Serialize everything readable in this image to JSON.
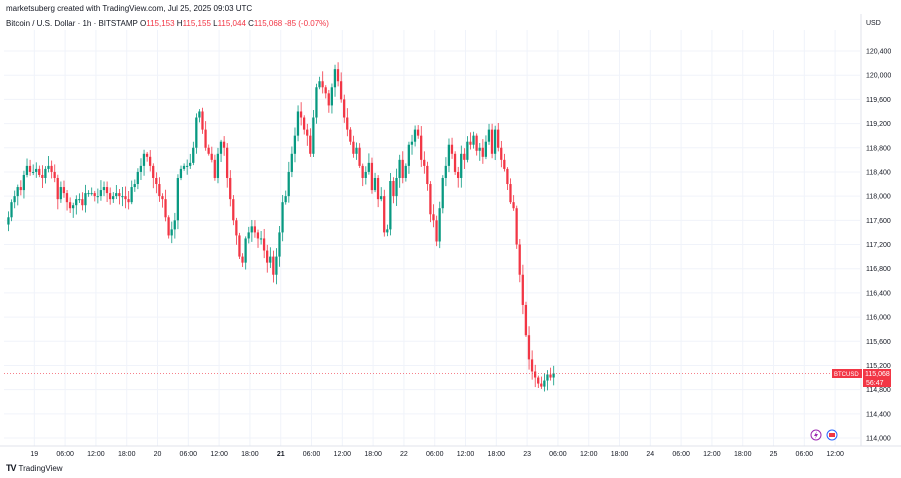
{
  "header": {
    "credit": "marketsuberg created with TradingView.com, Jul 25, 2025 09:03 UTC",
    "symbol": "Bitcoin / U.S. Dollar · 1h · BITSTAMP",
    "open_label": "O",
    "open": "115,153",
    "high_label": "H",
    "high": "115,155",
    "low_label": "L",
    "low": "115,044",
    "close_label": "C",
    "close": "115,068",
    "change": "-85 (-0.07%)"
  },
  "axis": {
    "currency": "USD"
  },
  "price_badge": {
    "symbol": "BTCUSD",
    "price": "115,068",
    "countdown": "56:47"
  },
  "footer": {
    "brand": "TradingView",
    "logo": "tradingview-logo-icon"
  },
  "colors": {
    "up": "#089981",
    "down": "#f23645",
    "grid": "#f0f3fa"
  },
  "chart_data": {
    "type": "candlestick",
    "title": "Bitcoin / U.S. Dollar · 1h · BITSTAMP",
    "ylim": [
      113900,
      120650
    ],
    "yticks": [
      114000,
      114400,
      114800,
      115200,
      115600,
      116000,
      116400,
      116800,
      117200,
      117600,
      118000,
      118400,
      118800,
      119200,
      119600,
      120000,
      120400
    ],
    "ytick_labels": [
      "114,000",
      "114,400",
      "114,800",
      "115,200",
      "115,600",
      "116,000",
      "116,400",
      "116,800",
      "117,200",
      "117,600",
      "118,000",
      "118,400",
      "118,800",
      "119,200",
      "119,600",
      "120,000",
      "120,400"
    ],
    "xticks": [
      {
        "label": "19",
        "bold": false,
        "bar": 4
      },
      {
        "label": "06:00",
        "bold": false,
        "bar": 14
      },
      {
        "label": "12:00",
        "bold": false,
        "bar": 24
      },
      {
        "label": "18:00",
        "bold": false,
        "bar": 34
      },
      {
        "label": "20",
        "bold": false,
        "bar": 44
      },
      {
        "label": "06:00",
        "bold": false,
        "bar": 54
      },
      {
        "label": "12:00",
        "bold": false,
        "bar": 64
      },
      {
        "label": "18:00",
        "bold": false,
        "bar": 74
      },
      {
        "label": "21",
        "bold": true,
        "bar": 84
      },
      {
        "label": "06:00",
        "bold": false,
        "bar": 94
      },
      {
        "label": "12:00",
        "bold": false,
        "bar": 104
      },
      {
        "label": "18:00",
        "bold": false,
        "bar": 114
      },
      {
        "label": "22",
        "bold": false,
        "bar": 124
      },
      {
        "label": "06:00",
        "bold": false,
        "bar": 134
      },
      {
        "label": "12:00",
        "bold": false,
        "bar": 144
      },
      {
        "label": "18:00",
        "bold": false,
        "bar": 154
      },
      {
        "label": "23",
        "bold": false,
        "bar": 164
      },
      {
        "label": "06:00",
        "bold": false,
        "bar": 174
      },
      {
        "label": "12:00",
        "bold": false,
        "bar": 184
      },
      {
        "label": "18:00",
        "bold": false,
        "bar": 194
      },
      {
        "label": "24",
        "bold": false,
        "bar": 204
      },
      {
        "label": "06:00",
        "bold": false,
        "bar": 214
      },
      {
        "label": "12:00",
        "bold": false,
        "bar": 224
      },
      {
        "label": "18:00",
        "bold": false,
        "bar": 234
      },
      {
        "label": "25",
        "bold": false,
        "bar": 244
      },
      {
        "label": "06:00",
        "bold": false,
        "bar": 254
      },
      {
        "label": "12:00",
        "bold": false,
        "bar": 264
      }
    ],
    "last_price": 115068,
    "closes": [
      117650,
      117900,
      118000,
      118150,
      118100,
      118350,
      118500,
      118400,
      118400,
      118450,
      118350,
      118300,
      118450,
      118500,
      118400,
      118300,
      117950,
      118150,
      118050,
      117900,
      117800,
      117850,
      117950,
      117950,
      117850,
      118050,
      118050,
      118050,
      118000,
      118000,
      118100,
      118150,
      118050,
      117950,
      118000,
      118050,
      118000,
      118000,
      117950,
      117900,
      118150,
      118200,
      118400,
      118500,
      118700,
      118650,
      118500,
      118300,
      118200,
      118000,
      117950,
      117650,
      117350,
      117450,
      117600,
      118300,
      118450,
      118500,
      118500,
      118550,
      118800,
      119300,
      119400,
      119100,
      118800,
      118700,
      118600,
      118300,
      118700,
      118900,
      118800,
      118300,
      117950,
      117600,
      117350,
      117000,
      116900,
      117300,
      117400,
      117500,
      117400,
      117300,
      117300,
      117100,
      116900,
      117000,
      116700,
      117000,
      117400,
      117900,
      118000,
      118400,
      118700,
      119000,
      119400,
      119300,
      119100,
      119000,
      118700,
      119300,
      119800,
      119900,
      119800,
      119700,
      119500,
      119800,
      120100,
      119900,
      119600,
      119300,
      119100,
      118900,
      118700,
      118800,
      118500,
      118300,
      118400,
      118550,
      118100,
      118300,
      117950,
      118000,
      117400,
      117450,
      118250,
      118000,
      118300,
      118600,
      118300,
      118500,
      118850,
      118900,
      119100,
      119000,
      118600,
      118500,
      118200,
      117700,
      117600,
      117250,
      117800,
      118300,
      118500,
      118850,
      118700,
      118400,
      118300,
      118700,
      118600,
      118900,
      118850,
      119000,
      118750,
      118800,
      118650,
      118900,
      119100,
      118700,
      119100,
      118800,
      118600,
      118450,
      118200,
      117900,
      117800,
      117200,
      116700,
      116200,
      115700,
      115300,
      115100,
      115000,
      114900,
      114850,
      114950,
      115050,
      115000,
      115068
    ],
    "hour_offset": 84,
    "note_bar_spacing": "1h candles"
  }
}
